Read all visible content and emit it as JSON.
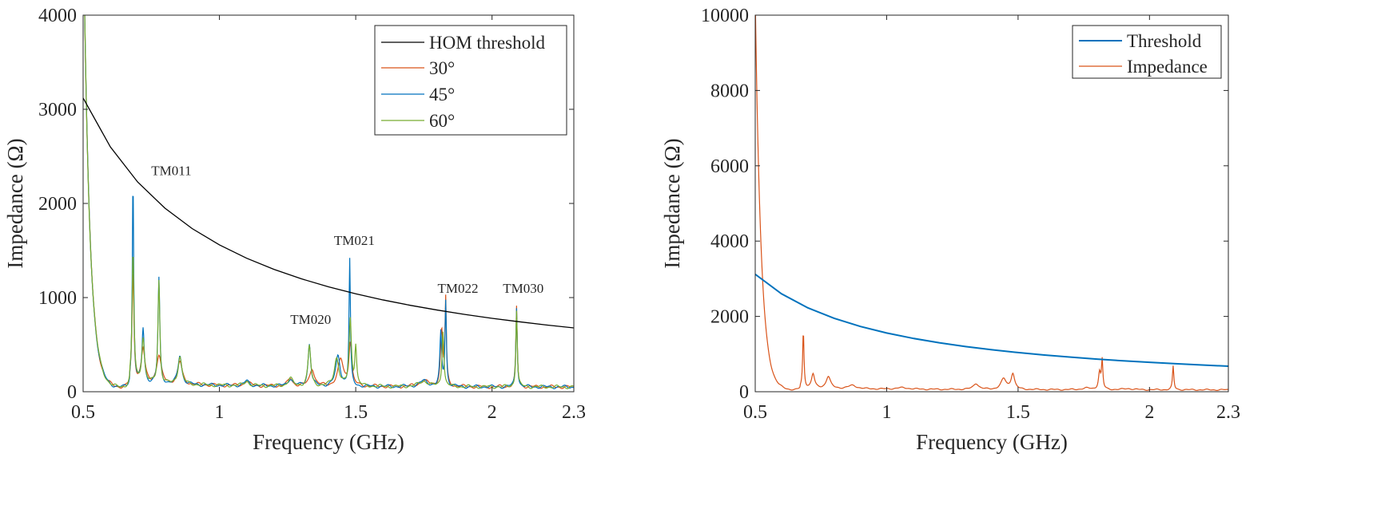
{
  "chart_data": [
    {
      "type": "line",
      "xlabel": "Frequency (GHz)",
      "ylabel": "Impedance (Ω)",
      "xlim": [
        0.5,
        2.3
      ],
      "ylim": [
        0,
        4000
      ],
      "xticks": [
        0.5,
        1,
        1.5,
        2,
        2.3
      ],
      "xtick_labels": [
        "0.5",
        "1",
        "1.5",
        "2",
        "2.3"
      ],
      "yticks": [
        0,
        1000,
        2000,
        3000,
        4000
      ],
      "ytick_labels": [
        "0",
        "1000",
        "2000",
        "3000",
        "4000"
      ],
      "grid": false,
      "legend_position": "top-right",
      "threshold": {
        "name": "HOM threshold",
        "color": "#000000",
        "x": [
          0.5,
          0.6,
          0.7,
          0.8,
          0.9,
          1.0,
          1.1,
          1.2,
          1.3,
          1.4,
          1.5,
          1.6,
          1.7,
          1.8,
          1.9,
          2.0,
          2.1,
          2.2,
          2.3
        ],
        "y": [
          3120,
          2600,
          2228,
          1950,
          1733,
          1560,
          1418,
          1300,
          1200,
          1114,
          1040,
          975,
          918,
          867,
          821,
          780,
          743,
          709,
          678
        ]
      },
      "series": [
        {
          "name": "30°",
          "color": "#d95319",
          "peaks": [
            {
              "f": 0.683,
              "a": 1200,
              "w": 0.004
            },
            {
              "f": 0.72,
              "a": 360,
              "w": 0.008
            },
            {
              "f": 0.778,
              "a": 300,
              "w": 0.01
            },
            {
              "f": 0.855,
              "a": 240,
              "w": 0.01
            },
            {
              "f": 1.34,
              "a": 190,
              "w": 0.01
            },
            {
              "f": 1.445,
              "a": 280,
              "w": 0.012
            },
            {
              "f": 1.48,
              "a": 460,
              "w": 0.006
            },
            {
              "f": 1.815,
              "a": 590,
              "w": 0.005
            },
            {
              "f": 1.83,
              "a": 910,
              "w": 0.003
            },
            {
              "f": 2.09,
              "a": 850,
              "w": 0.003
            }
          ]
        },
        {
          "name": "45°",
          "color": "#0072bd",
          "peaks": [
            {
              "f": 0.683,
              "a": 2200,
              "w": 0.003
            },
            {
              "f": 0.72,
              "a": 580,
              "w": 0.005
            },
            {
              "f": 0.778,
              "a": 1120,
              "w": 0.004
            },
            {
              "f": 0.855,
              "a": 310,
              "w": 0.008
            },
            {
              "f": 1.33,
              "a": 450,
              "w": 0.006
            },
            {
              "f": 1.435,
              "a": 320,
              "w": 0.01
            },
            {
              "f": 1.478,
              "a": 1340,
              "w": 0.003
            },
            {
              "f": 1.812,
              "a": 560,
              "w": 0.004
            },
            {
              "f": 1.83,
              "a": 900,
              "w": 0.003
            },
            {
              "f": 2.09,
              "a": 850,
              "w": 0.003
            }
          ]
        },
        {
          "name": "60°",
          "color": "#77ac30",
          "peaks": [
            {
              "f": 0.683,
              "a": 1400,
              "w": 0.004
            },
            {
              "f": 0.72,
              "a": 480,
              "w": 0.006
            },
            {
              "f": 0.778,
              "a": 1100,
              "w": 0.004
            },
            {
              "f": 0.855,
              "a": 300,
              "w": 0.008
            },
            {
              "f": 1.33,
              "a": 430,
              "w": 0.006
            },
            {
              "f": 1.43,
              "a": 300,
              "w": 0.01
            },
            {
              "f": 1.48,
              "a": 700,
              "w": 0.005
            },
            {
              "f": 1.5,
              "a": 420,
              "w": 0.004
            },
            {
              "f": 1.82,
              "a": 600,
              "w": 0.004
            },
            {
              "f": 2.09,
              "a": 820,
              "w": 0.003
            }
          ]
        }
      ],
      "annotations": [
        {
          "text": "TM011",
          "x": 0.75,
          "y": 2300
        },
        {
          "text": "TM020",
          "x": 1.26,
          "y": 720
        },
        {
          "text": "TM021",
          "x": 1.42,
          "y": 1560
        },
        {
          "text": "TM022",
          "x": 1.8,
          "y": 1050
        },
        {
          "text": "TM030",
          "x": 2.04,
          "y": 1050
        }
      ]
    },
    {
      "type": "line",
      "xlabel": "Frequency (GHz)",
      "ylabel": "Impedance (Ω)",
      "xlim": [
        0.5,
        2.3
      ],
      "ylim": [
        0,
        10000
      ],
      "xticks": [
        0.5,
        1,
        1.5,
        2,
        2.3
      ],
      "xtick_labels": [
        "0.5",
        "1",
        "1.5",
        "2",
        "2.3"
      ],
      "yticks": [
        0,
        2000,
        4000,
        6000,
        8000,
        10000
      ],
      "ytick_labels": [
        "0",
        "2000",
        "4000",
        "6000",
        "8000",
        "10000"
      ],
      "grid": false,
      "legend_position": "top-right",
      "threshold": {
        "name": "Threshold",
        "color": "#0072bd",
        "x": [
          0.5,
          0.6,
          0.7,
          0.8,
          0.9,
          1.0,
          1.1,
          1.2,
          1.3,
          1.4,
          1.5,
          1.6,
          1.7,
          1.8,
          1.9,
          2.0,
          2.1,
          2.2,
          2.3
        ],
        "y": [
          3120,
          2600,
          2228,
          1950,
          1733,
          1560,
          1418,
          1300,
          1200,
          1114,
          1040,
          975,
          918,
          867,
          821,
          780,
          743,
          709,
          678
        ]
      },
      "series": [
        {
          "name": "Impedance",
          "color": "#d95319",
          "peaks": [
            {
              "f": 0.683,
              "a": 1520,
              "w": 0.003
            },
            {
              "f": 0.72,
              "a": 380,
              "w": 0.007
            },
            {
              "f": 0.778,
              "a": 320,
              "w": 0.01
            },
            {
              "f": 1.34,
              "a": 160,
              "w": 0.012
            },
            {
              "f": 1.445,
              "a": 280,
              "w": 0.012
            },
            {
              "f": 1.48,
              "a": 420,
              "w": 0.008
            },
            {
              "f": 1.82,
              "a": 760,
              "w": 0.003
            },
            {
              "f": 1.81,
              "a": 460,
              "w": 0.005
            },
            {
              "f": 2.09,
              "a": 630,
              "w": 0.003
            }
          ]
        }
      ]
    }
  ]
}
